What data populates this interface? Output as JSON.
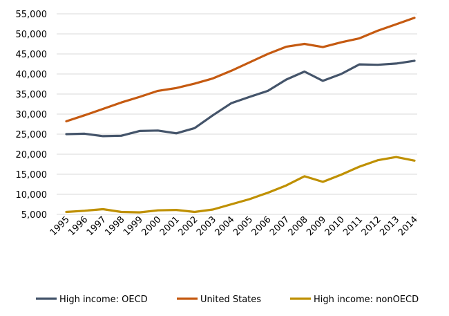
{
  "chart_data": {
    "type": "line",
    "title": "",
    "xlabel": "",
    "ylabel": "",
    "x": [
      "1995",
      "1996",
      "1997",
      "1998",
      "1999",
      "2000",
      "2001",
      "2002",
      "2003",
      "2004",
      "2005",
      "2006",
      "2007",
      "2008",
      "2009",
      "2010",
      "2011",
      "2012",
      "2013",
      "2014"
    ],
    "ylim": [
      5000,
      55000
    ],
    "yticks": [
      "5,000",
      "10,000",
      "15,000",
      "20,000",
      "25,000",
      "30,000",
      "35,000",
      "40,000",
      "45,000",
      "50,000",
      "55,000"
    ],
    "grid": true,
    "legend_position": "bottom",
    "series": [
      {
        "name": "High income: OECD",
        "color": "#44546a",
        "values": [
          25000,
          25100,
          24500,
          24600,
          25800,
          25900,
          25200,
          26500,
          29700,
          32700,
          34300,
          35800,
          38600,
          40600,
          38300,
          40000,
          42400,
          42300,
          42600,
          43300
        ]
      },
      {
        "name": "United States",
        "color": "#c55a11",
        "values": [
          28200,
          29700,
          31300,
          32900,
          34300,
          35800,
          36500,
          37600,
          38900,
          40800,
          42900,
          45000,
          46800,
          47500,
          46700,
          47900,
          48900,
          50800,
          52400,
          54000
        ]
      },
      {
        "name": "High income: nonOECD",
        "color": "#bf9000",
        "values": [
          5600,
          5900,
          6300,
          5600,
          5500,
          6000,
          6100,
          5600,
          6200,
          7500,
          8800,
          10400,
          12200,
          14500,
          13100,
          14900,
          16900,
          18500,
          19300,
          18400
        ]
      }
    ]
  }
}
